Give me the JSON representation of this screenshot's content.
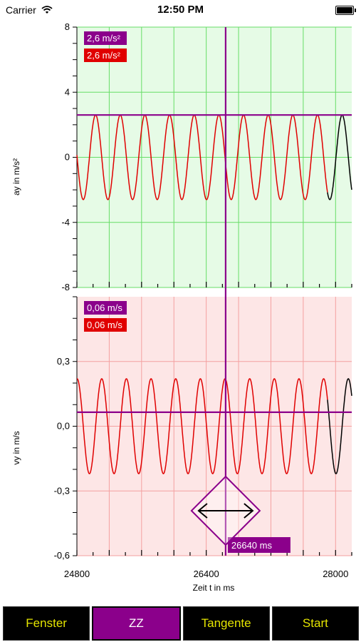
{
  "status_bar": {
    "carrier": "Carrier",
    "time": "12:50 PM"
  },
  "colors": {
    "cursor": "#8b008b",
    "acc_bg": "#e6fbe6",
    "vel_bg": "#fde6e6",
    "series_active": "#e00000",
    "series_rest": "#000000",
    "button_text": "#e5e500"
  },
  "chart_data": [
    {
      "type": "line",
      "ylabel": "ay in m/s²",
      "ylim": [
        -8,
        8
      ],
      "yticks": [
        "8",
        "4",
        "0",
        "-4",
        "-8"
      ],
      "amplitude": 2.6,
      "period_ms": 305,
      "cursor_y": 2.6,
      "tags": [
        "2,6 m/s²",
        "2,6 m/s²"
      ]
    },
    {
      "type": "line",
      "ylabel": "vy in m/s",
      "ylim": [
        -0.6,
        0.6
      ],
      "yticks": [
        "0,3",
        "0,0",
        "-0,3",
        "-0,6"
      ],
      "amplitude": 0.22,
      "period_ms": 305,
      "cursor_y": 0.065,
      "tags": [
        "0,06 m/s",
        "0,06 m/s"
      ]
    }
  ],
  "x_axis": {
    "label": "Zeit t in ms",
    "xlim": [
      24800,
      28200
    ],
    "ticks": [
      "24800",
      "26400",
      "28000"
    ],
    "cursor_x": 26640,
    "cursor_label": "26640 ms",
    "active_end": 27900
  },
  "toolbar": {
    "fenster": "Fenster",
    "zz": "ZZ",
    "tangente": "Tangente",
    "start": "Start"
  }
}
